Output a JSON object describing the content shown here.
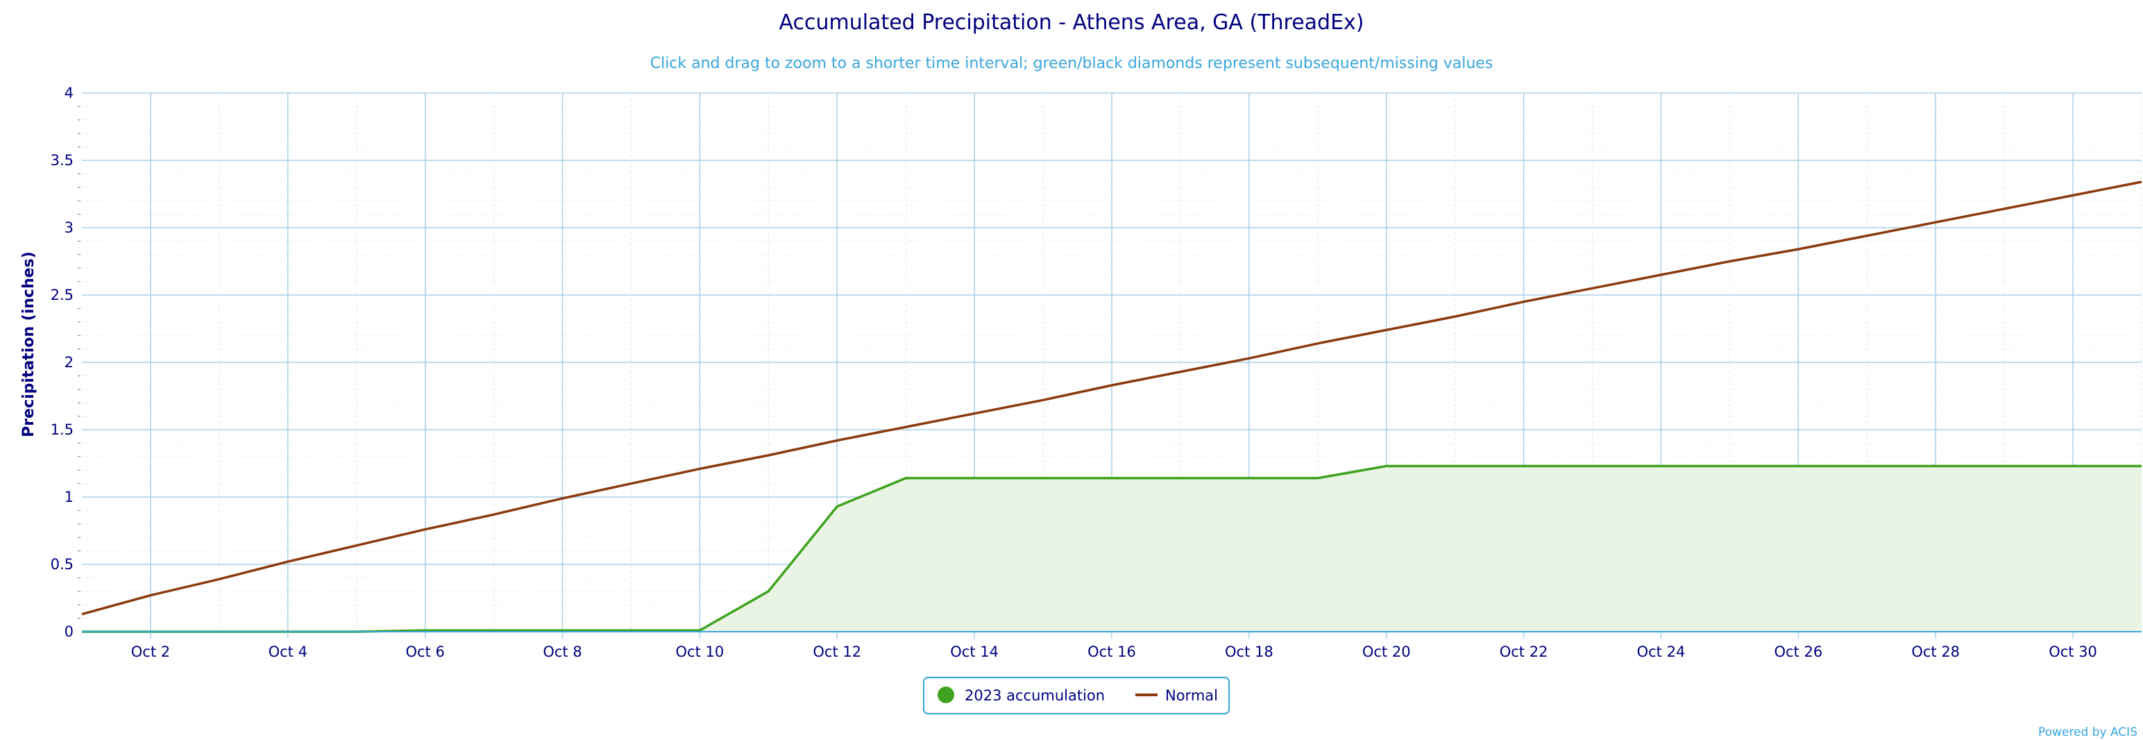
{
  "chart_data": {
    "type": "area",
    "title": "Accumulated Precipitation - Athens Area, GA (ThreadEx)",
    "subtitle": "Click and drag to zoom to a shorter time interval; green/black diamonds represent subsequent/missing values",
    "xlabel": "",
    "ylabel": "Precipitation (inches)",
    "ylim": [
      0,
      4
    ],
    "xlim": [
      1,
      31
    ],
    "y_ticks": [
      "0",
      "0.5",
      "1",
      "1.5",
      "2",
      "2.5",
      "3",
      "3.5",
      "4"
    ],
    "x_ticks": [
      "Oct 2",
      "Oct 4",
      "Oct 6",
      "Oct 8",
      "Oct 10",
      "Oct 12",
      "Oct 14",
      "Oct 16",
      "Oct 18",
      "Oct 20",
      "Oct 22",
      "Oct 24",
      "Oct 26",
      "Oct 28",
      "Oct 30"
    ],
    "grid": true,
    "legend_position": "bottom-center",
    "credit": "Powered by ACIS",
    "colors": {
      "accumulation": "#3fa31f",
      "accumulation_fill": "#eaf4e4",
      "normal": "#8b3a0f",
      "grid": "#a8cfe6",
      "axis_text": "#00007f"
    },
    "series": [
      {
        "name": "2023 accumulation",
        "kind": "area",
        "x": [
          1,
          2,
          3,
          4,
          5,
          6,
          7,
          8,
          9,
          10,
          11,
          12,
          13,
          14,
          15,
          16,
          17,
          18,
          19,
          20,
          21,
          22,
          23,
          24,
          25,
          26,
          27,
          28,
          29,
          30,
          31
        ],
        "values": [
          0.0,
          0.0,
          0.0,
          0.0,
          0.0,
          0.01,
          0.01,
          0.01,
          0.01,
          0.01,
          0.3,
          0.93,
          1.14,
          1.14,
          1.14,
          1.14,
          1.14,
          1.14,
          1.14,
          1.23,
          1.23,
          1.23,
          1.23,
          1.23,
          1.23,
          1.23,
          1.23,
          1.23,
          1.23,
          1.23,
          1.23
        ]
      },
      {
        "name": "Normal",
        "kind": "line",
        "x": [
          1,
          2,
          3,
          4,
          5,
          6,
          7,
          8,
          9,
          10,
          11,
          12,
          13,
          14,
          15,
          16,
          17,
          18,
          19,
          20,
          21,
          22,
          23,
          24,
          25,
          26,
          27,
          28,
          29,
          30,
          31
        ],
        "values": [
          0.13,
          0.27,
          0.39,
          0.52,
          0.64,
          0.76,
          0.87,
          0.99,
          1.1,
          1.21,
          1.31,
          1.42,
          1.52,
          1.62,
          1.72,
          1.83,
          1.93,
          2.03,
          2.14,
          2.24,
          2.34,
          2.45,
          2.55,
          2.65,
          2.75,
          2.84,
          2.94,
          3.04,
          3.14,
          3.24,
          3.34
        ]
      }
    ]
  }
}
